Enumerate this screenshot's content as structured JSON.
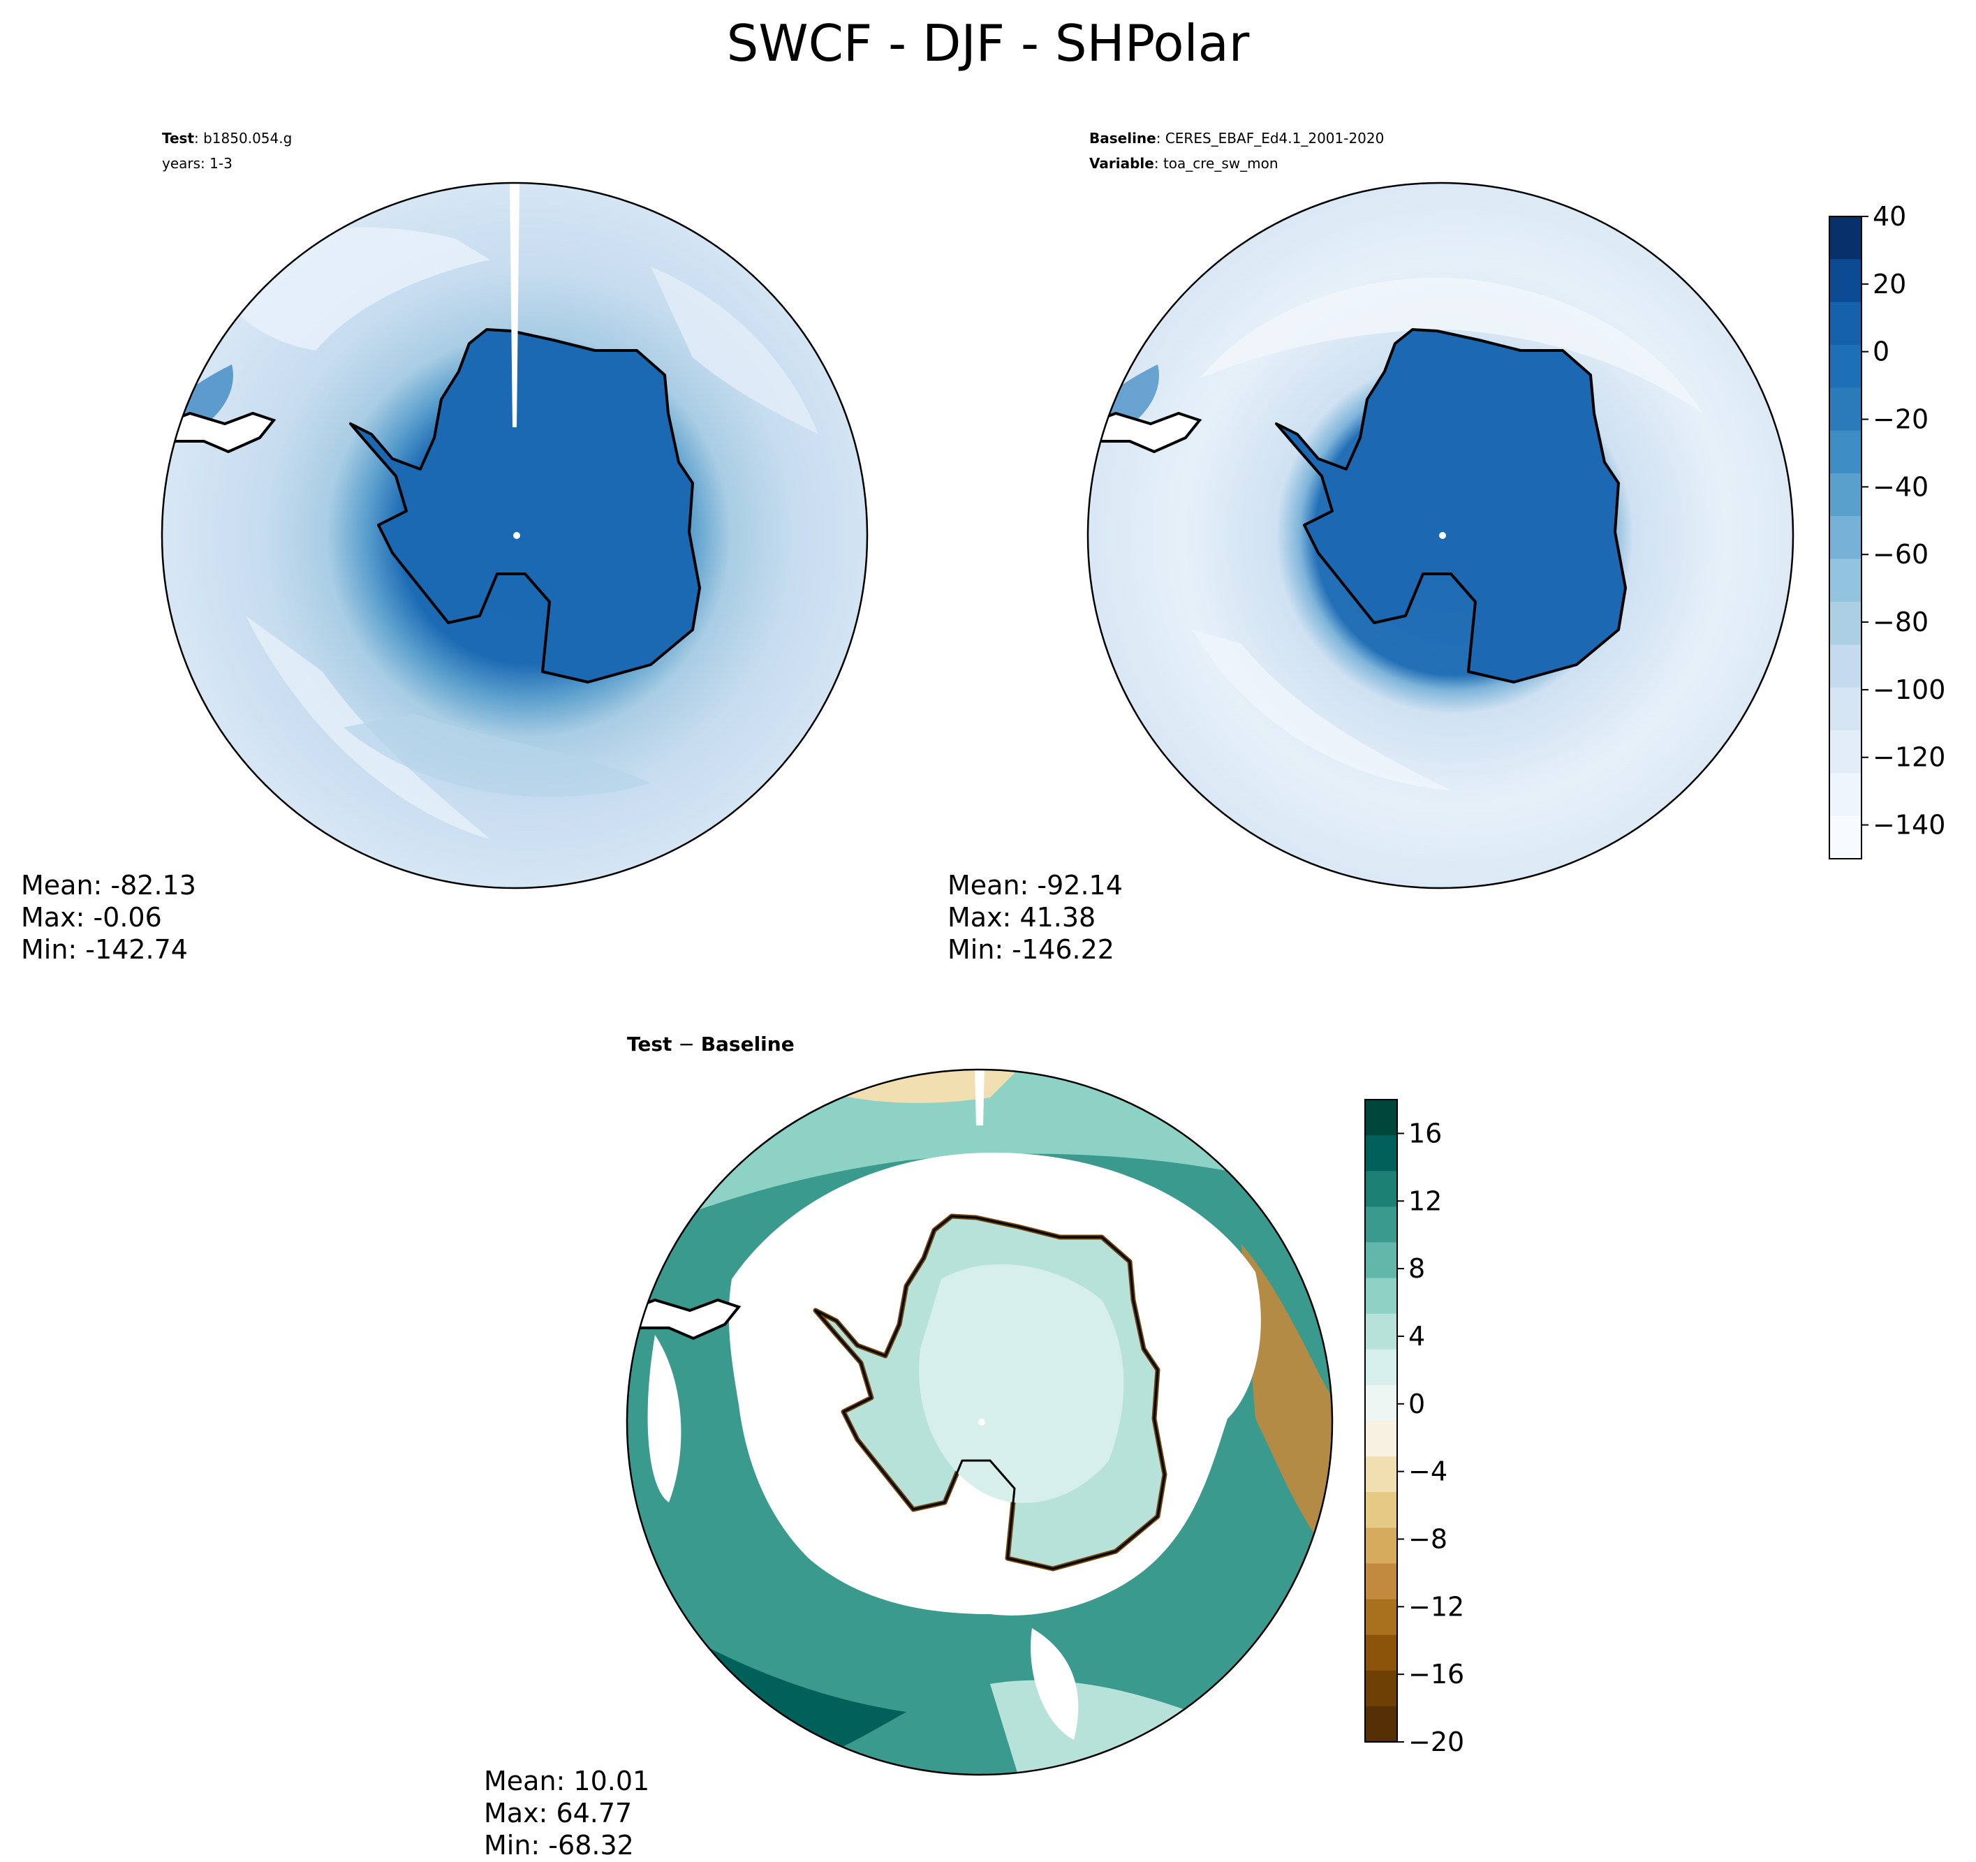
{
  "title": "SWCF - DJF - SHPolar",
  "test_panel": {
    "label_bold": "Test",
    "label_value": ": b1850.054.g",
    "years": "years: 1-3",
    "mean": "Mean: -82.13",
    "max": "Max: -0.06",
    "min": "Min: -142.74"
  },
  "baseline_panel": {
    "label_bold": "Baseline",
    "label_value": ": CERES_EBAF_Ed4.1_2001-2020",
    "variable_bold": "Variable",
    "variable_value": ": toa_cre_sw_mon",
    "mean": "Mean: -92.14",
    "max": "Max: 41.38",
    "min": "Min: -146.22"
  },
  "diff_panel": {
    "label_bold": "Test",
    "label_sep": " − ",
    "label_bold2": "Baseline",
    "mean": "Mean: 10.01",
    "max": "Max: 64.77",
    "min": "Min: -68.32"
  },
  "chart_data": [
    {
      "type": "heatmap",
      "title": "Test",
      "colormap": "Blues_r",
      "colorbar": {
        "ticks": [
          40,
          20,
          0,
          -20,
          -40,
          -60,
          -80,
          -100,
          -120,
          -140
        ],
        "range": [
          -150,
          40
        ]
      },
      "stats": {
        "mean": -82.13,
        "max": -0.06,
        "min": -142.74
      }
    },
    {
      "type": "heatmap",
      "title": "Baseline",
      "colormap": "Blues_r",
      "colorbar": {
        "ticks": [
          40,
          20,
          0,
          -20,
          -40,
          -60,
          -80,
          -100,
          -120,
          -140
        ],
        "range": [
          -150,
          40
        ]
      },
      "stats": {
        "mean": -92.14,
        "max": 41.38,
        "min": -146.22
      }
    },
    {
      "type": "heatmap",
      "title": "Test − Baseline",
      "colormap": "BrBG",
      "colorbar": {
        "ticks": [
          16,
          12,
          8,
          4,
          0,
          -4,
          -8,
          -12,
          -16,
          -20
        ],
        "range": [
          -20,
          18
        ]
      },
      "stats": {
        "mean": 10.01,
        "max": 64.77,
        "min": -68.32
      }
    }
  ],
  "colorbar_top": {
    "labels": [
      "40",
      "20",
      "0",
      "−20",
      "−40",
      "−60",
      "−80",
      "−100",
      "−120",
      "−140"
    ],
    "colors": [
      "#08306b",
      "#0c4a94",
      "#1561ac",
      "#1d6fb8",
      "#2b7bba",
      "#3d8dc4",
      "#5aa0cd",
      "#76b2d8",
      "#93c4df",
      "#adcfe4",
      "#c4daee",
      "#d5e5f3",
      "#e2edf8",
      "#eef5fc",
      "#f7fbff"
    ]
  },
  "colorbar_diff": {
    "labels": [
      "16",
      "12",
      "8",
      "4",
      "0",
      "−4",
      "−8",
      "−12",
      "−16",
      "−20"
    ],
    "colors": [
      "#00463a",
      "#00605a",
      "#1b7f74",
      "#3a9a8e",
      "#63b7aa",
      "#8ed2c5",
      "#b7e2da",
      "#d7efea",
      "#eef6f4",
      "#f8f0e0",
      "#f1deb1",
      "#e6c984",
      "#d6ab5e",
      "#c18a3c",
      "#a9701d",
      "#8c540a",
      "#6f4006",
      "#553005"
    ]
  }
}
